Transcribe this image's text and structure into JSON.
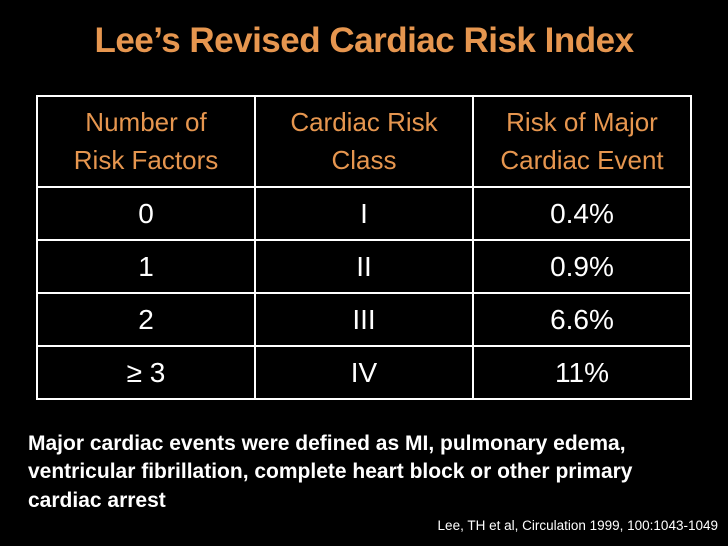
{
  "slide": {
    "title": "Lee’s Revised Cardiac Risk Index",
    "table": {
      "headers": [
        "Number of\nRisk Factors",
        "Cardiac Risk\nClass",
        "Risk of Major\nCardiac Event"
      ],
      "rows": [
        [
          "0",
          "I",
          "0.4%"
        ],
        [
          "1",
          "II",
          "0.9%"
        ],
        [
          "2",
          "III",
          "6.6%"
        ],
        [
          "≥ 3",
          "IV",
          "11%"
        ]
      ]
    },
    "footnote": "Major cardiac events were defined as MI, pulmonary edema, ventricular fibrillation, complete heart block or other primary cardiac arrest",
    "citation": "Lee, TH et al, Circulation 1999, 100:1043-1049",
    "colors": {
      "background": "#000000",
      "accent_orange": "#E6964F",
      "text_white": "#FFFFFF",
      "table_border": "#FFFFFF"
    }
  }
}
